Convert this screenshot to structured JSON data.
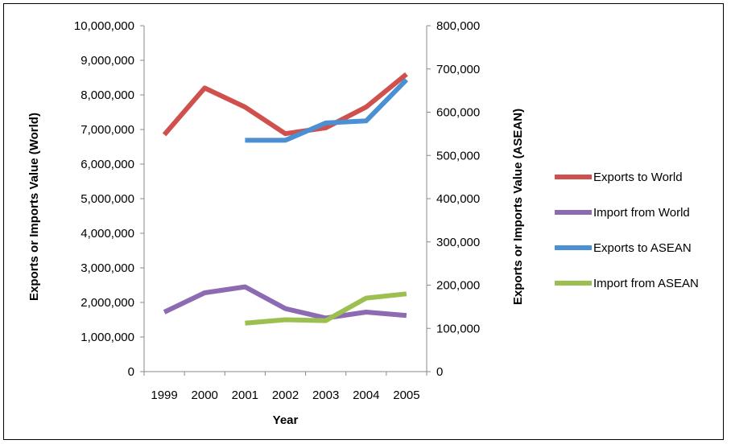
{
  "chart_data": {
    "type": "line",
    "categories": [
      "1999",
      "2000",
      "2001",
      "2002",
      "2003",
      "2004",
      "2005"
    ],
    "xlabel": "Year",
    "ylabel_left": "Exports or Imports Value (World)",
    "ylabel_right": "Exports or Imports Value (ASEAN)",
    "ylim_left": [
      0,
      10000000
    ],
    "ylim_right": [
      0,
      800000
    ],
    "yticks_left": [
      "0",
      "1,000,000",
      "2,000,000",
      "3,000,000",
      "4,000,000",
      "5,000,000",
      "6,000,000",
      "7,000,000",
      "8,000,000",
      "9,000,000",
      "10,000,000"
    ],
    "yticks_right": [
      "0",
      "100,000",
      "200,000",
      "300,000",
      "400,000",
      "500,000",
      "600,000",
      "700,000",
      "800,000"
    ],
    "legend_position": "right",
    "grid": false,
    "series": [
      {
        "name": "Exports to World",
        "axis": "left",
        "color": "#d0504d",
        "values": [
          6850000,
          8200000,
          7650000,
          6880000,
          7050000,
          7650000,
          8600000
        ]
      },
      {
        "name": "Import from World",
        "axis": "left",
        "color": "#8d6bb3",
        "values": [
          1720000,
          2280000,
          2450000,
          1820000,
          1550000,
          1720000,
          1620000
        ]
      },
      {
        "name": "Exports to ASEAN",
        "axis": "right",
        "color": "#4a90d3",
        "values": [
          null,
          null,
          535000,
          535000,
          575000,
          580000,
          675000
        ]
      },
      {
        "name": "Import from ASEAN",
        "axis": "right",
        "color": "#9bc04f",
        "values": [
          null,
          null,
          112000,
          120000,
          118000,
          170000,
          180000
        ]
      }
    ]
  }
}
